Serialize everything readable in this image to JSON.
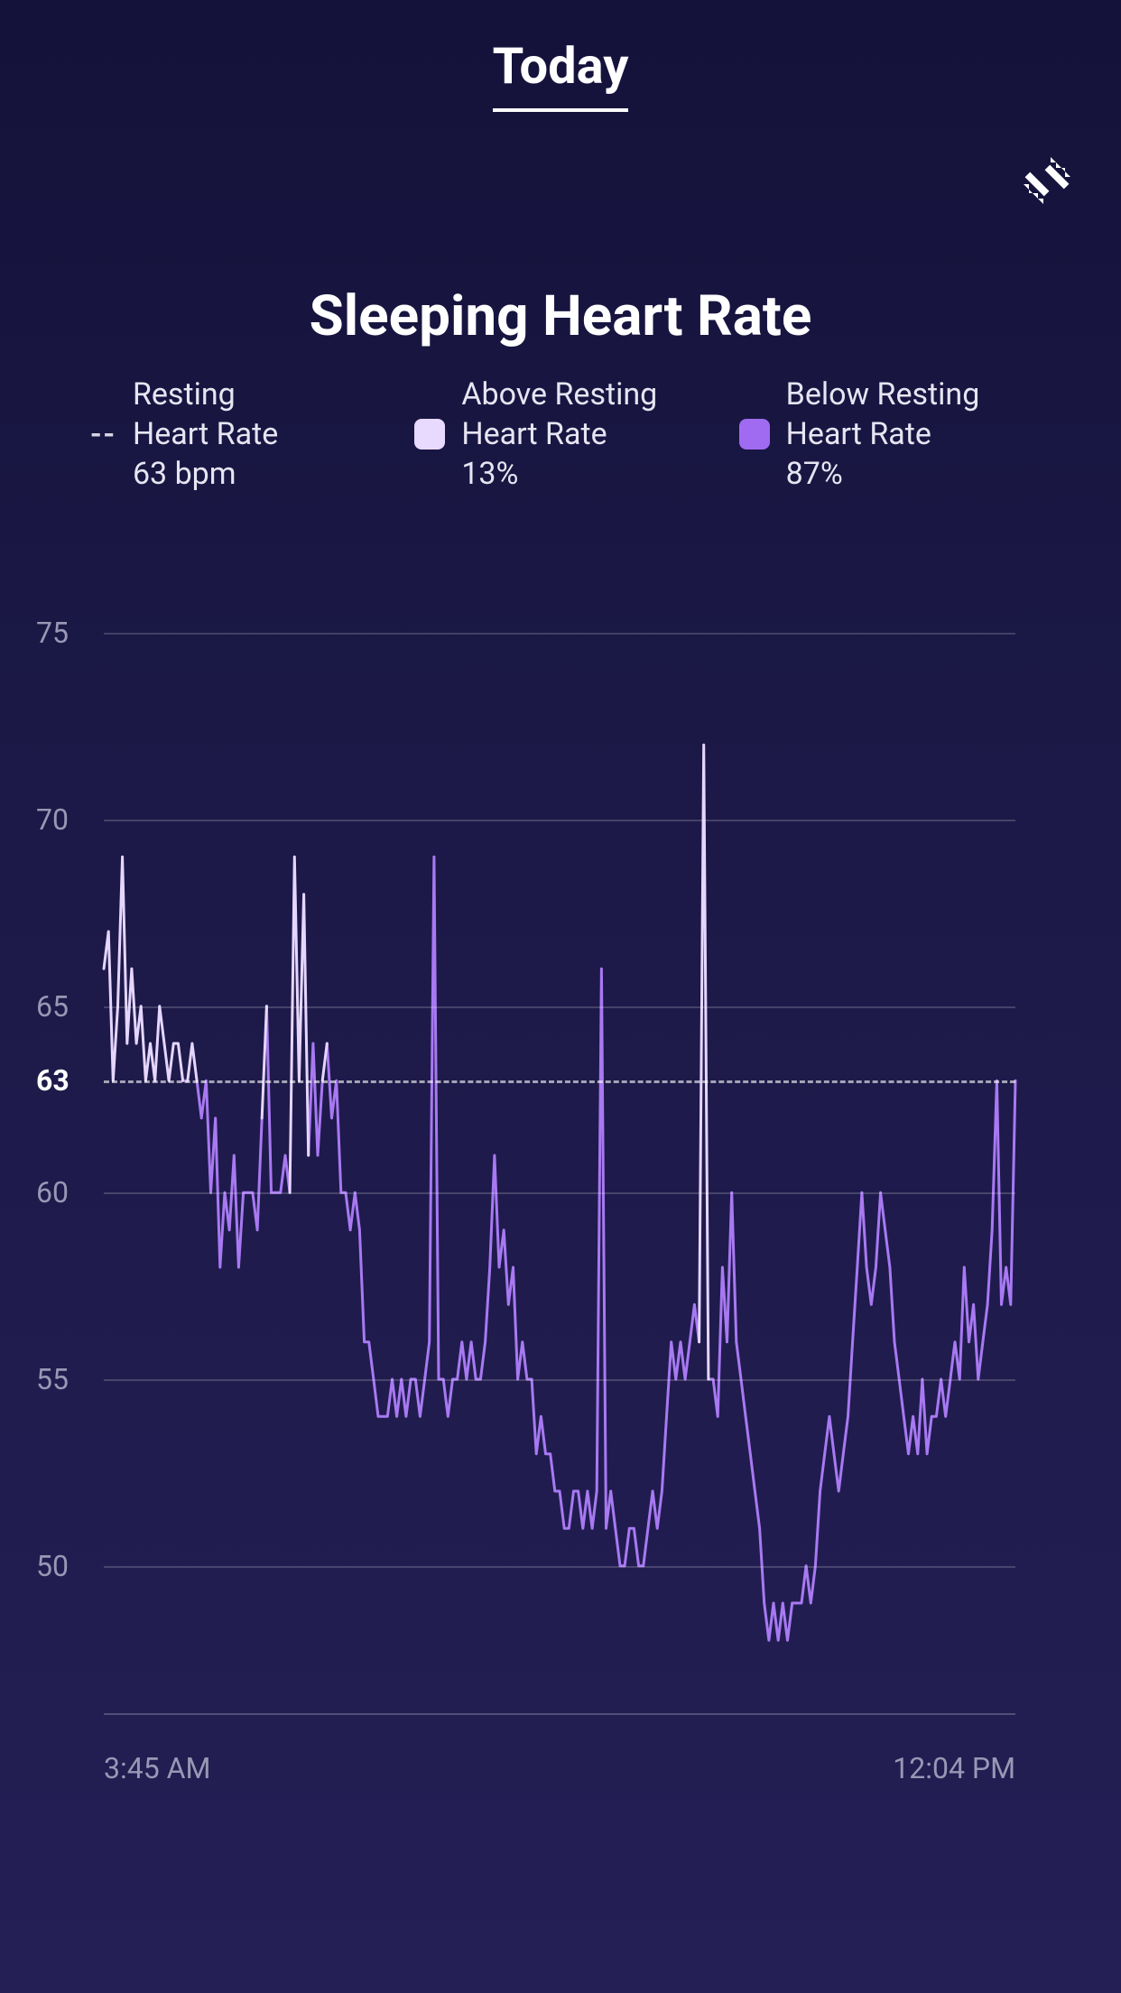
{
  "header": {
    "tab_label": "Today"
  },
  "chart": {
    "title": "Sleeping Heart Rate",
    "type": "line",
    "legend": {
      "resting": {
        "label_line1": "Resting",
        "label_line2": "Heart Rate",
        "value": "63 bpm",
        "marker": "--"
      },
      "above": {
        "label_line1": "Above Resting",
        "label_line2": "Heart Rate",
        "value": "13%",
        "swatch_color": "#e8d9ff"
      },
      "below": {
        "label_line1": "Below Resting",
        "label_line2": "Heart Rate",
        "value": "87%",
        "swatch_color": "#a06bf0"
      }
    },
    "y_axis": {
      "ticks": [
        50,
        55,
        60,
        65,
        70,
        75
      ],
      "min": 46,
      "max": 76,
      "resting_value": 63,
      "label_color": "#9a97b5",
      "resting_label_color": "#ffffff"
    },
    "x_axis": {
      "start_label": "3:45 AM",
      "end_label": "12:04 PM"
    },
    "style": {
      "grid_color": "rgba(255,255,255,0.18)",
      "resting_dash_color": "rgba(255,255,255,0.6)",
      "line_color_below": "#a879f2",
      "line_color_above": "#e6d6ff",
      "line_width": 3,
      "background_gradient_top": "#14123a",
      "background_gradient_bottom": "#241f55"
    },
    "data": [
      66,
      67,
      63,
      65,
      69,
      64,
      66,
      64,
      65,
      63,
      64,
      63,
      65,
      64,
      63,
      64,
      64,
      63,
      63,
      64,
      63,
      62,
      63,
      60,
      62,
      58,
      60,
      59,
      61,
      58,
      60,
      60,
      60,
      59,
      62,
      65,
      60,
      60,
      60,
      61,
      60,
      69,
      63,
      68,
      61,
      64,
      61,
      63,
      64,
      62,
      63,
      60,
      60,
      59,
      60,
      59,
      56,
      56,
      55,
      54,
      54,
      54,
      55,
      54,
      55,
      54,
      55,
      55,
      54,
      55,
      56,
      69,
      55,
      55,
      54,
      55,
      55,
      56,
      55,
      56,
      55,
      55,
      56,
      58,
      61,
      58,
      59,
      57,
      58,
      55,
      56,
      55,
      55,
      53,
      54,
      53,
      53,
      52,
      52,
      51,
      51,
      52,
      52,
      51,
      52,
      51,
      52,
      66,
      51,
      52,
      51,
      50,
      50,
      51,
      51,
      50,
      50,
      51,
      52,
      51,
      52,
      54,
      56,
      55,
      56,
      55,
      56,
      57,
      56,
      72,
      55,
      55,
      54,
      58,
      56,
      60,
      56,
      55,
      54,
      53,
      52,
      51,
      49,
      48,
      49,
      48,
      49,
      48,
      49,
      49,
      49,
      50,
      49,
      50,
      52,
      53,
      54,
      53,
      52,
      53,
      54,
      56,
      58,
      60,
      58,
      57,
      58,
      60,
      59,
      58,
      56,
      55,
      54,
      53,
      54,
      53,
      55,
      53,
      54,
      54,
      55,
      54,
      55,
      56,
      55,
      58,
      56,
      57,
      55,
      56,
      57,
      59,
      63,
      57,
      58,
      57,
      63
    ]
  }
}
